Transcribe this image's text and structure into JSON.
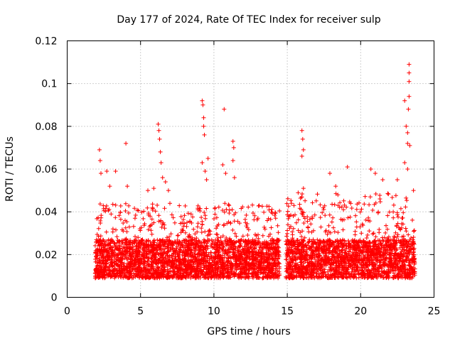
{
  "chart_data": {
    "type": "scatter",
    "title": "Day 177 of 2024, Rate Of TEC Index for receiver sulp",
    "xlabel": "GPS time / hours",
    "ylabel": "ROTI / TECUs",
    "xlim": [
      0,
      25
    ],
    "ylim": [
      0,
      0.12
    ],
    "xticks": [
      0,
      5,
      10,
      15,
      20,
      25
    ],
    "xtick_labels": [
      "0",
      "5",
      "10",
      "15",
      "20",
      "25"
    ],
    "yticks": [
      0,
      0.02,
      0.04,
      0.06,
      0.08,
      0.1,
      0.12
    ],
    "ytick_labels": [
      "0",
      "0.02",
      "0.04",
      "0.06",
      "0.08",
      "0.1",
      "0.12"
    ],
    "grid": true,
    "marker": "+",
    "marker_color": "#ff0000",
    "series": [
      {
        "name": "ROTI",
        "segments": [
          {
            "x_start": 1.9,
            "x_end": 14.5,
            "y_typical_min": 0.005,
            "y_typical_max": 0.04
          },
          {
            "x_start": 14.9,
            "x_end": 23.7,
            "y_typical_min": 0.005,
            "y_typical_max": 0.045
          }
        ],
        "notable_points": [
          {
            "x": 2.2,
            "y": 0.069
          },
          {
            "x": 2.25,
            "y": 0.064
          },
          {
            "x": 2.3,
            "y": 0.058
          },
          {
            "x": 2.7,
            "y": 0.059
          },
          {
            "x": 2.9,
            "y": 0.052
          },
          {
            "x": 3.3,
            "y": 0.059
          },
          {
            "x": 4.0,
            "y": 0.072
          },
          {
            "x": 4.1,
            "y": 0.052
          },
          {
            "x": 5.5,
            "y": 0.05
          },
          {
            "x": 5.9,
            "y": 0.051
          },
          {
            "x": 6.2,
            "y": 0.081
          },
          {
            "x": 6.25,
            "y": 0.078
          },
          {
            "x": 6.3,
            "y": 0.074
          },
          {
            "x": 6.35,
            "y": 0.068
          },
          {
            "x": 6.4,
            "y": 0.063
          },
          {
            "x": 6.5,
            "y": 0.056
          },
          {
            "x": 6.7,
            "y": 0.054
          },
          {
            "x": 6.9,
            "y": 0.05
          },
          {
            "x": 9.2,
            "y": 0.092
          },
          {
            "x": 9.25,
            "y": 0.09
          },
          {
            "x": 9.3,
            "y": 0.084
          },
          {
            "x": 9.3,
            "y": 0.08
          },
          {
            "x": 9.35,
            "y": 0.076
          },
          {
            "x": 9.2,
            "y": 0.063
          },
          {
            "x": 9.4,
            "y": 0.059
          },
          {
            "x": 9.5,
            "y": 0.055
          },
          {
            "x": 9.6,
            "y": 0.065
          },
          {
            "x": 10.7,
            "y": 0.088
          },
          {
            "x": 10.6,
            "y": 0.062
          },
          {
            "x": 10.8,
            "y": 0.058
          },
          {
            "x": 11.3,
            "y": 0.073
          },
          {
            "x": 11.35,
            "y": 0.07
          },
          {
            "x": 11.3,
            "y": 0.064
          },
          {
            "x": 11.4,
            "y": 0.056
          },
          {
            "x": 16.0,
            "y": 0.078
          },
          {
            "x": 16.05,
            "y": 0.074
          },
          {
            "x": 16.1,
            "y": 0.069
          },
          {
            "x": 16.0,
            "y": 0.066
          },
          {
            "x": 16.1,
            "y": 0.051
          },
          {
            "x": 17.9,
            "y": 0.058
          },
          {
            "x": 18.3,
            "y": 0.052
          },
          {
            "x": 19.1,
            "y": 0.061
          },
          {
            "x": 20.7,
            "y": 0.06
          },
          {
            "x": 21.0,
            "y": 0.058
          },
          {
            "x": 21.5,
            "y": 0.055
          },
          {
            "x": 22.5,
            "y": 0.055
          },
          {
            "x": 23.0,
            "y": 0.092
          },
          {
            "x": 23.1,
            "y": 0.08
          },
          {
            "x": 23.2,
            "y": 0.077
          },
          {
            "x": 23.2,
            "y": 0.072
          },
          {
            "x": 23.0,
            "y": 0.063
          },
          {
            "x": 23.2,
            "y": 0.06
          },
          {
            "x": 23.3,
            "y": 0.109
          },
          {
            "x": 23.3,
            "y": 0.105
          },
          {
            "x": 23.3,
            "y": 0.101
          },
          {
            "x": 23.3,
            "y": 0.094
          },
          {
            "x": 23.25,
            "y": 0.088
          },
          {
            "x": 23.35,
            "y": 0.071
          },
          {
            "x": 23.6,
            "y": 0.05
          }
        ]
      }
    ]
  }
}
